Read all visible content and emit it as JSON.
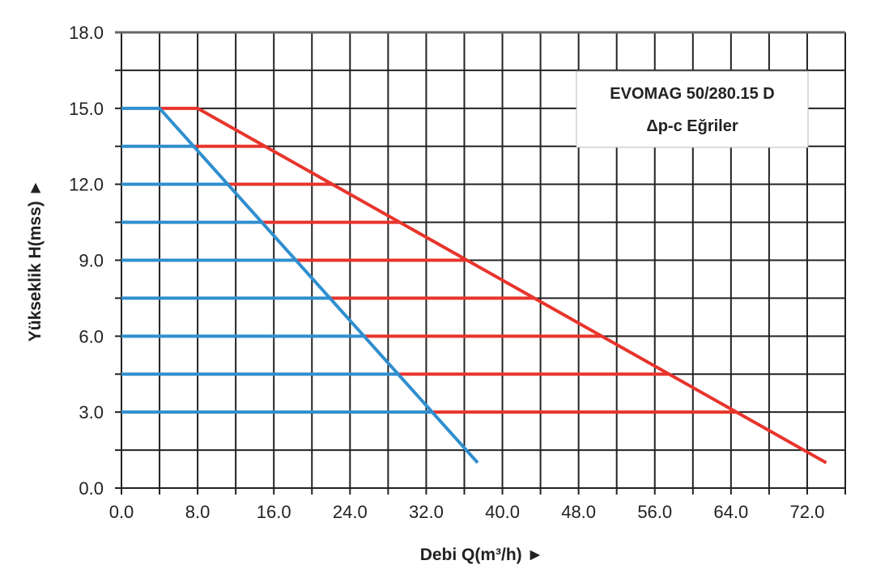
{
  "chart_data": {
    "type": "line",
    "title": [
      "EVOMAG 50/280.15 D",
      "Δp-c Eğriler"
    ],
    "xlabel": "Debi Q(m³/h) ►",
    "ylabel": "Yükseklik H(mss) ►",
    "xlim": [
      0,
      76
    ],
    "ylim": [
      0,
      18
    ],
    "grid": true,
    "x_grid_step": 4,
    "y_grid_step": 1.5,
    "x_ticks": [
      0,
      8,
      16,
      24,
      32,
      40,
      48,
      56,
      64,
      72
    ],
    "x_tick_labels": [
      "0.0",
      "8.0",
      "16.0",
      "24.0",
      "32.0",
      "40.0",
      "48.0",
      "56.0",
      "64.0",
      "72.0"
    ],
    "y_ticks": [
      0,
      3,
      6,
      9,
      12,
      15,
      18
    ],
    "y_tick_labels": [
      "0.0",
      "3.0",
      "6.0",
      "9.0",
      "12.0",
      "15.0",
      "18.0"
    ],
    "series": [
      {
        "color": "#2f8fcf",
        "points": [
          [
            0,
            15
          ],
          [
            4,
            15
          ],
          [
            37.4,
            1.0
          ]
        ]
      },
      {
        "color": "#e8342c",
        "points": [
          [
            4,
            15
          ],
          [
            8,
            15
          ],
          [
            74.0,
            1.0
          ]
        ]
      }
    ],
    "levels": [
      15,
      13.5,
      12,
      10.5,
      9,
      7.5,
      6,
      4.5,
      3
    ],
    "colors": {
      "min_curve": "#2f8fcf",
      "max_curve": "#e8342c",
      "grid": "#222222"
    }
  }
}
